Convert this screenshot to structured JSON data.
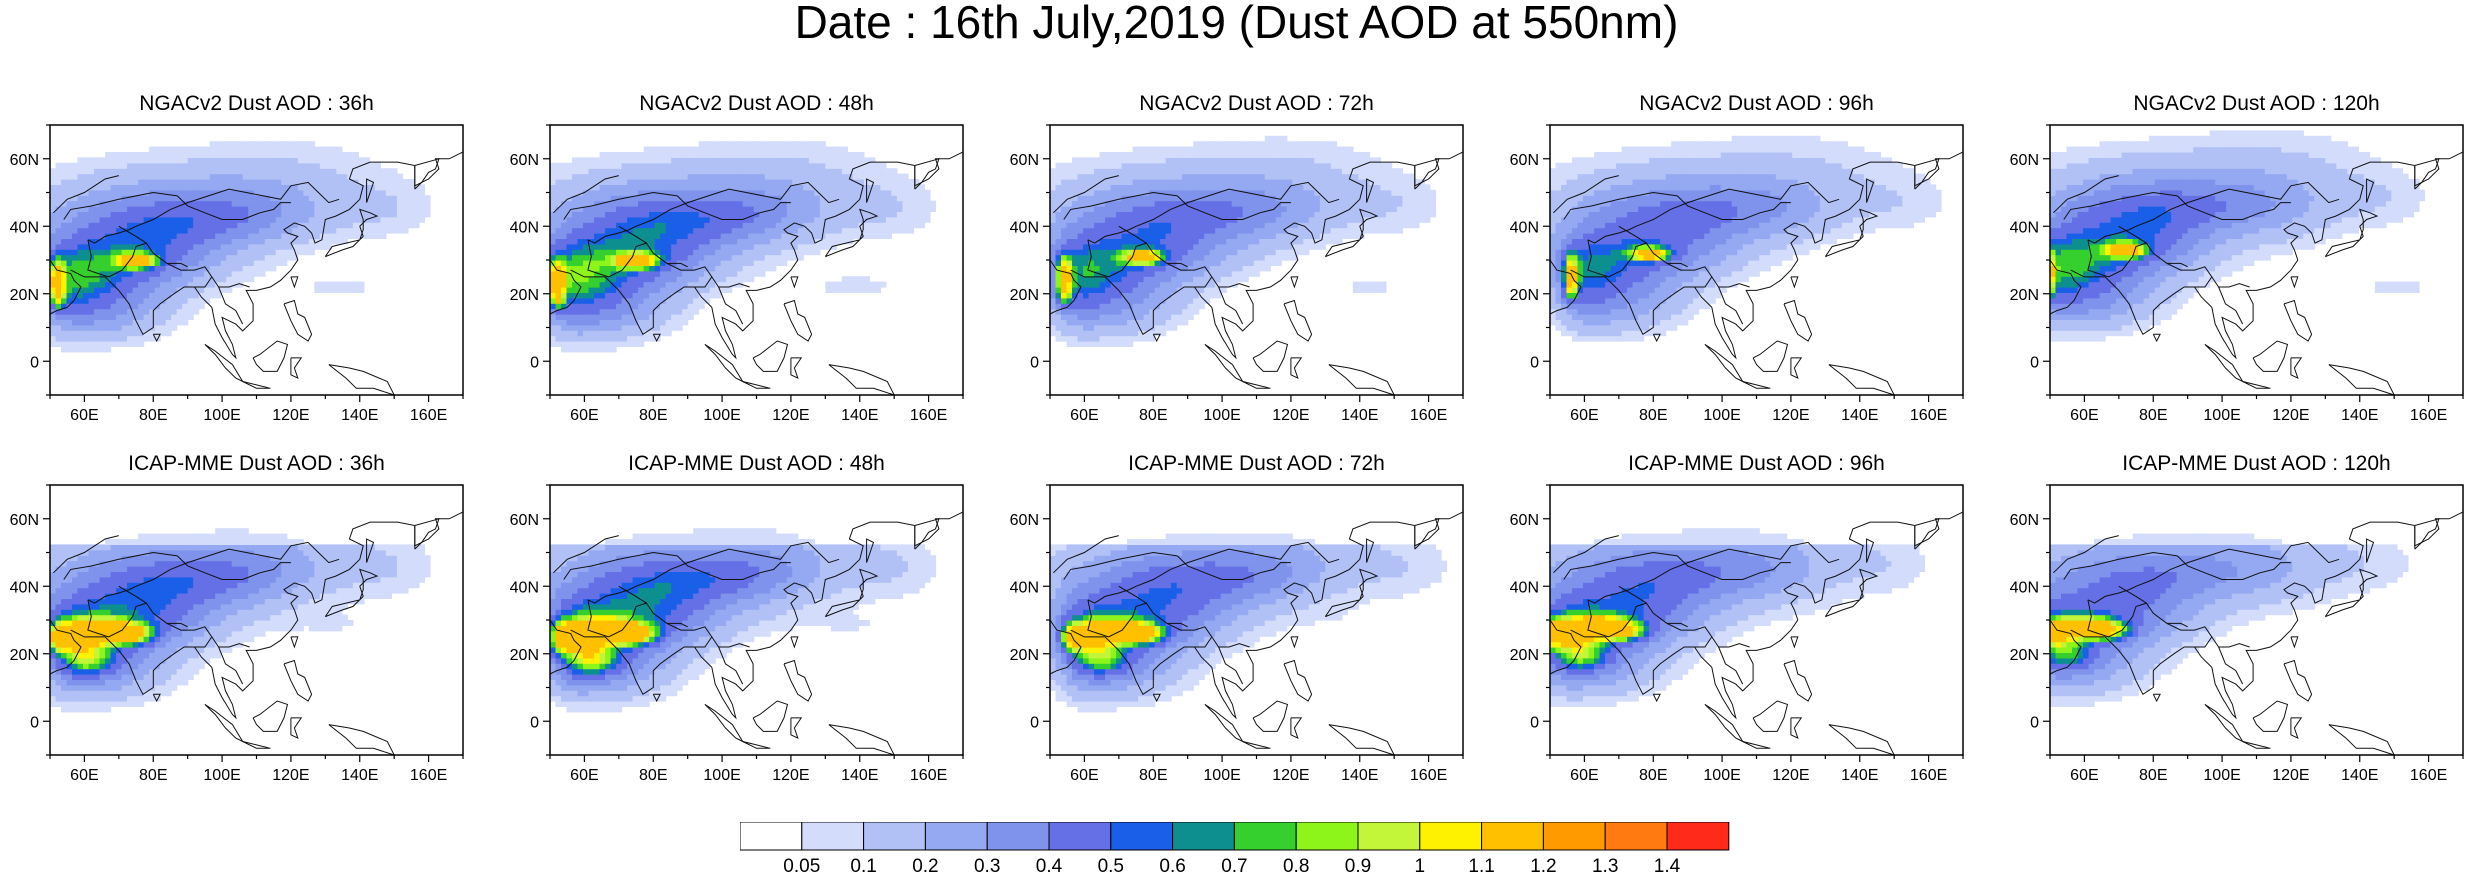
{
  "title": "Date : 16th July,2019 (Dust AOD at 550nm)",
  "axes": {
    "lat_ticks": [
      "60N",
      "40N",
      "20N",
      "0"
    ],
    "lat_values": [
      60,
      40,
      20,
      0
    ],
    "lon_ticks": [
      "60E",
      "80E",
      "100E",
      "120E",
      "140E",
      "160E"
    ],
    "lon_values": [
      60,
      80,
      100,
      120,
      140,
      160
    ],
    "lon_range": [
      50,
      170
    ],
    "lat_range": [
      -10,
      70
    ]
  },
  "rows": [
    {
      "model": "NGACv2",
      "panels": [
        {
          "title": "NGACv2 Dust AOD : 36h",
          "lead": "36h"
        },
        {
          "title": "NGACv2 Dust AOD : 48h",
          "lead": "48h"
        },
        {
          "title": "NGACv2 Dust AOD : 72h",
          "lead": "72h"
        },
        {
          "title": "NGACv2 Dust AOD : 96h",
          "lead": "96h"
        },
        {
          "title": "NGACv2 Dust AOD : 120h",
          "lead": "120h"
        }
      ]
    },
    {
      "model": "ICAP-MME",
      "panels": [
        {
          "title": "ICAP-MME Dust AOD : 36h",
          "lead": "36h"
        },
        {
          "title": "ICAP-MME Dust AOD : 48h",
          "lead": "48h"
        },
        {
          "title": "ICAP-MME Dust AOD : 72h",
          "lead": "72h"
        },
        {
          "title": "ICAP-MME Dust AOD : 96h",
          "lead": "96h"
        },
        {
          "title": "ICAP-MME Dust AOD : 120h",
          "lead": "120h"
        }
      ]
    }
  ],
  "colorbar": {
    "labels": [
      "0.05",
      "0.1",
      "0.2",
      "0.3",
      "0.4",
      "0.5",
      "0.6",
      "0.7",
      "0.8",
      "0.9",
      "1",
      "1.1",
      "1.2",
      "1.3",
      "1.4"
    ],
    "colors": [
      "#ffffff",
      "#d3ddfb",
      "#b1c1f6",
      "#95a9f2",
      "#7f93ec",
      "#6570e6",
      "#1a5fe8",
      "#0e8f8f",
      "#35cf2e",
      "#8ef51a",
      "#c3f538",
      "#fff200",
      "#ffc000",
      "#ff9a00",
      "#ff7a10",
      "#ff2a1a"
    ]
  }
}
